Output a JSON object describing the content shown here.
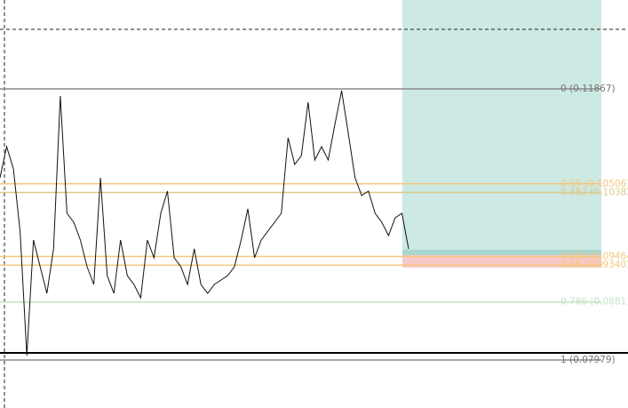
{
  "chart_data": {
    "type": "line",
    "levels": [
      {
        "label": "0 (0.11867)",
        "ratio": 0,
        "price": 0.11867,
        "color": "#8a8a8a"
      },
      {
        "label": "0.35 (0.10506)",
        "ratio": 0.35,
        "price": 0.10506,
        "color": "#f5c77e"
      },
      {
        "label": "0.382 (0.10382)",
        "ratio": 0.382,
        "price": 0.10382,
        "color": "#dcc88c"
      },
      {
        "label": "0.618 (0.09464)",
        "ratio": 0.618,
        "price": 0.09464,
        "color": "#f5c77e"
      },
      {
        "label": "0.65 (0.09340)",
        "ratio": 0.65,
        "price": 0.0934,
        "color": "#f5c77e"
      },
      {
        "label": "0.786 (0.08811)",
        "ratio": 0.786,
        "price": 0.08811,
        "color": "#c6e2c6"
      },
      {
        "label": "1 (0.07979)",
        "ratio": 1,
        "price": 0.07979,
        "color": "#8a8a8a"
      }
    ],
    "series": [
      {
        "color": "#111111",
        "values": [
          0.10592,
          0.11038,
          0.1072,
          0.09827,
          0.08043,
          0.097,
          0.09317,
          0.08935,
          0.09572,
          0.11765,
          0.10082,
          0.09955,
          0.097,
          0.09317,
          0.09062,
          0.10592,
          0.0919,
          0.08935,
          0.097,
          0.0919,
          0.09062,
          0.08871,
          0.097,
          0.09445,
          0.10082,
          0.10401,
          0.09445,
          0.09317,
          0.09062,
          0.09572,
          0.09062,
          0.08935,
          0.09062,
          0.09126,
          0.0919,
          0.09317,
          0.097,
          0.10146,
          0.09445,
          0.097,
          0.09827,
          0.09955,
          0.10082,
          0.11166,
          0.10783,
          0.10911,
          0.11676,
          0.10847,
          0.11038,
          0.10847,
          0.11357,
          0.11842,
          0.1123,
          0.10592,
          0.10337,
          0.10401,
          0.10082,
          0.09955,
          0.09764,
          0.10019,
          0.10082,
          0.09572
        ]
      }
    ]
  }
}
